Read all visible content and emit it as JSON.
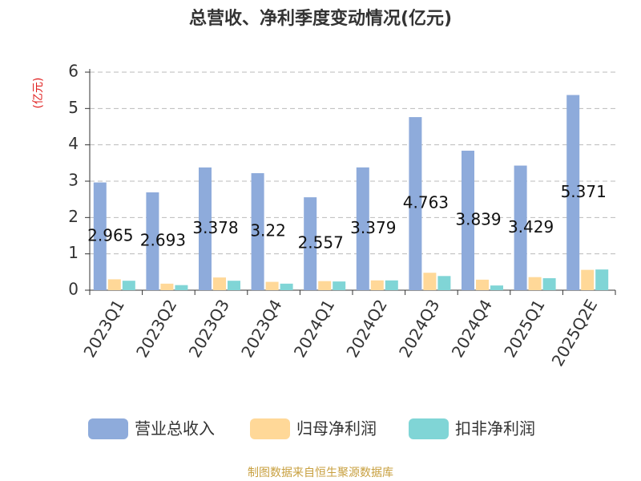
{
  "chart_data": {
    "type": "bar",
    "title": "总营收、净利季度变动情况(亿元)",
    "y_label": "(亿元)",
    "categories": [
      "2023Q1",
      "2023Q2",
      "2023Q3",
      "2023Q4",
      "2024Q1",
      "2024Q2",
      "2024Q3",
      "2024Q4",
      "2025Q1",
      "2025Q2E"
    ],
    "series": [
      {
        "name": "营业总收入",
        "color": "#8eabdb",
        "values": [
          2.965,
          2.693,
          3.378,
          3.22,
          2.557,
          3.379,
          4.763,
          3.839,
          3.429,
          5.371
        ],
        "labels": true
      },
      {
        "name": "归母净利润",
        "color": "#ffd898",
        "values": [
          0.3,
          0.18,
          0.35,
          0.23,
          0.25,
          0.27,
          0.48,
          0.29,
          0.36,
          0.56
        ],
        "labels": false
      },
      {
        "name": "扣非净利润",
        "color": "#80d5d6",
        "values": [
          0.26,
          0.14,
          0.26,
          0.18,
          0.24,
          0.27,
          0.39,
          0.13,
          0.33,
          0.57
        ],
        "labels": false
      }
    ],
    "ylim": [
      0,
      6
    ],
    "yticks": [
      0,
      1,
      2,
      3,
      4,
      5,
      6
    ],
    "grid": true,
    "source": "制图数据来自恒生聚源数据库"
  }
}
